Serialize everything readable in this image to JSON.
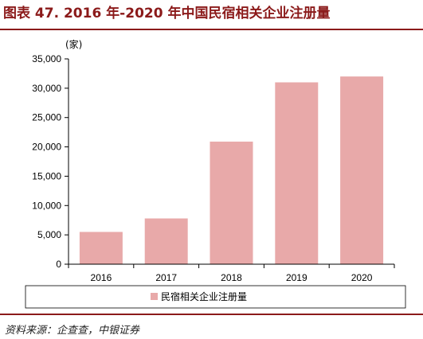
{
  "figure": {
    "title": "图表 47. 2016 年-2020 年中国民宿相关企业注册量",
    "source": "资料来源：企查查，中银证券"
  },
  "colors": {
    "bar": "#e8a9a9",
    "title": "#8b1a1a",
    "axis": "#000000"
  },
  "chart_data": {
    "type": "bar",
    "categories": [
      "2016",
      "2017",
      "2018",
      "2019",
      "2020"
    ],
    "series": [
      {
        "name": "民宿相关企业注册量",
        "values": [
          5500,
          7800,
          20900,
          31000,
          32000
        ]
      }
    ],
    "ylabel": "(家)",
    "ylim": [
      0,
      35000
    ],
    "yticks": [
      "0",
      "5,000",
      "10,000",
      "15,000",
      "20,000",
      "25,000",
      "30,000",
      "35,000"
    ],
    "grid": false,
    "legend": "bottom"
  }
}
